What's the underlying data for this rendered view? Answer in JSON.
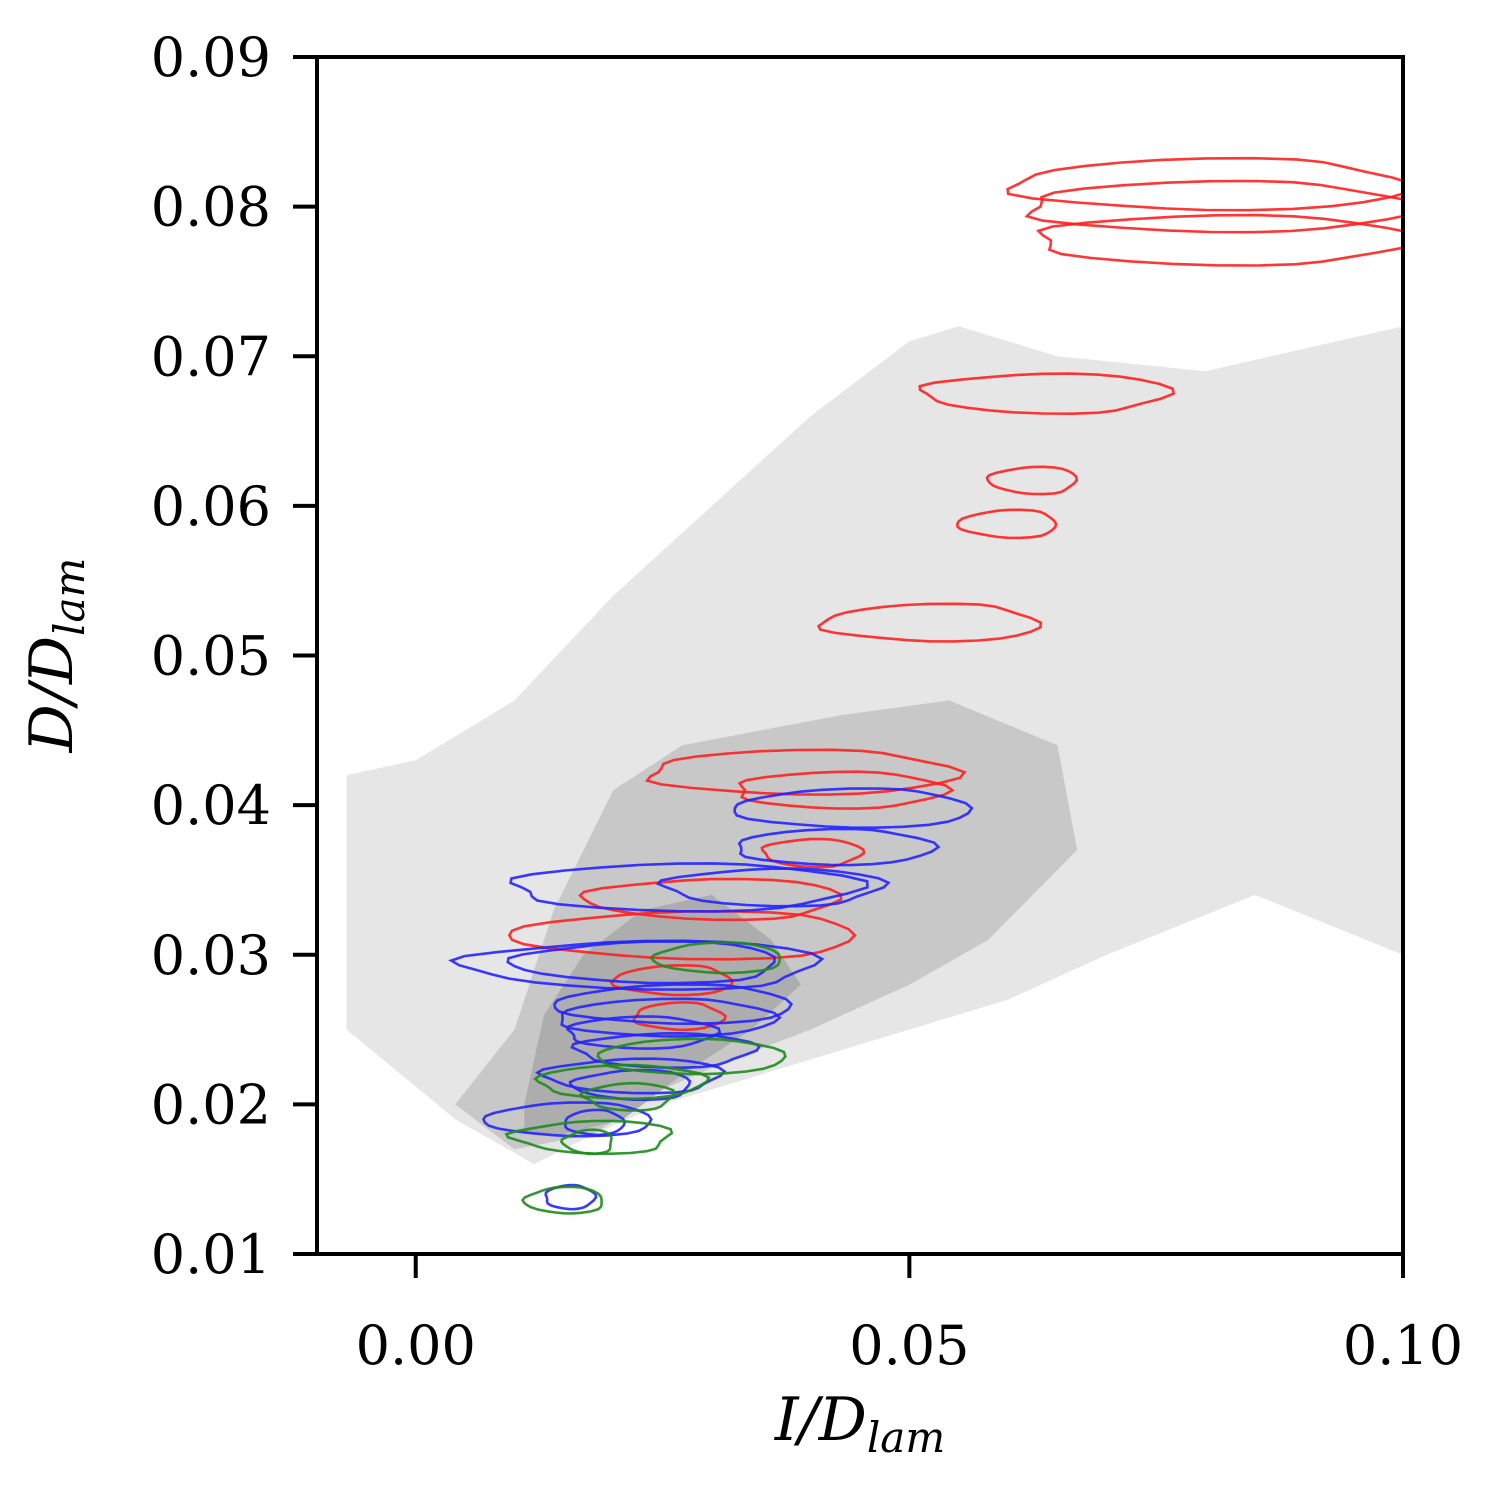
{
  "chart_data": {
    "type": "scatter",
    "subtype": "2d-histogram-with-contours",
    "title": "",
    "xlabel": {
      "main": "I/D",
      "sub": "lam"
    },
    "ylabel": {
      "main": "D/D",
      "sub": "lam"
    },
    "xlim": [
      -0.01,
      0.1
    ],
    "ylim": [
      0.01,
      0.09
    ],
    "xticks": [
      "0.00",
      "0.05",
      "0.10"
    ],
    "xtick_values": [
      0.0,
      0.05,
      0.1
    ],
    "yticks": [
      "0.01",
      "0.02",
      "0.03",
      "0.04",
      "0.05",
      "0.06",
      "0.07",
      "0.08",
      "0.09"
    ],
    "ytick_values": [
      0.01,
      0.02,
      0.03,
      0.04,
      0.05,
      0.06,
      0.07,
      0.08,
      0.09
    ],
    "grid": false,
    "legend": "none",
    "colors": {
      "red": "#ff2020",
      "blue": "#2424ff",
      "green": "#1e8c1e",
      "density_light": "#dedede",
      "density_mid": "#c4c4c4",
      "density_dark": "#adadad"
    },
    "density_bands": [
      {
        "level": "low",
        "color": "#e6e6e6",
        "polygon": [
          [
            -0.007,
            0.042
          ],
          [
            0.0,
            0.043
          ],
          [
            0.01,
            0.047
          ],
          [
            0.02,
            0.054
          ],
          [
            0.03,
            0.06
          ],
          [
            0.04,
            0.066
          ],
          [
            0.05,
            0.071
          ],
          [
            0.055,
            0.072
          ],
          [
            0.065,
            0.07
          ],
          [
            0.08,
            0.069
          ],
          [
            0.1,
            0.072
          ],
          [
            0.1,
            0.03
          ],
          [
            0.085,
            0.034
          ],
          [
            0.07,
            0.03
          ],
          [
            0.06,
            0.027
          ],
          [
            0.045,
            0.024
          ],
          [
            0.035,
            0.022
          ],
          [
            0.025,
            0.02
          ],
          [
            0.018,
            0.018
          ],
          [
            0.012,
            0.016
          ],
          [
            0.004,
            0.019
          ],
          [
            -0.007,
            0.025
          ]
        ]
      },
      {
        "level": "medium",
        "color": "#c8c8c8",
        "polygon": [
          [
            0.01,
            0.025
          ],
          [
            0.014,
            0.033
          ],
          [
            0.02,
            0.041
          ],
          [
            0.027,
            0.044
          ],
          [
            0.035,
            0.045
          ],
          [
            0.043,
            0.046
          ],
          [
            0.054,
            0.047
          ],
          [
            0.065,
            0.044
          ],
          [
            0.067,
            0.037
          ],
          [
            0.058,
            0.031
          ],
          [
            0.05,
            0.028
          ],
          [
            0.04,
            0.025
          ],
          [
            0.032,
            0.023
          ],
          [
            0.025,
            0.021
          ],
          [
            0.018,
            0.018
          ],
          [
            0.01,
            0.017
          ],
          [
            0.004,
            0.02
          ]
        ]
      },
      {
        "level": "high",
        "color": "#adadad",
        "polygon": [
          [
            0.011,
            0.02
          ],
          [
            0.013,
            0.026
          ],
          [
            0.017,
            0.03
          ],
          [
            0.023,
            0.033
          ],
          [
            0.03,
            0.034
          ],
          [
            0.036,
            0.031
          ],
          [
            0.039,
            0.028
          ],
          [
            0.034,
            0.025
          ],
          [
            0.027,
            0.022
          ],
          [
            0.021,
            0.019
          ],
          [
            0.015,
            0.018
          ],
          [
            0.011,
            0.018
          ]
        ]
      }
    ],
    "series": [
      {
        "color": "red",
        "contours": [
          [
            0.06,
            0.0805,
            0.1,
            0.0825
          ],
          [
            0.061,
            0.0795,
            0.1,
            0.0805
          ],
          [
            0.062,
            0.0775,
            0.1,
            0.078
          ],
          [
            0.051,
            0.0675,
            0.076,
            0.0675
          ],
          [
            0.058,
            0.0617,
            0.067,
            0.0617
          ],
          [
            0.055,
            0.0588,
            0.065,
            0.0588
          ],
          [
            0.041,
            0.0522,
            0.063,
            0.0522
          ],
          [
            0.023,
            0.0422,
            0.054,
            0.0422
          ],
          [
            0.032,
            0.041,
            0.053,
            0.041
          ],
          [
            0.035,
            0.0368,
            0.045,
            0.0368
          ],
          [
            0.017,
            0.0337,
            0.043,
            0.0337
          ],
          [
            0.01,
            0.0313,
            0.045,
            0.0313
          ],
          [
            0.02,
            0.0283,
            0.032,
            0.0283
          ],
          [
            0.022,
            0.0259,
            0.031,
            0.0259
          ]
        ]
      },
      {
        "color": "blue",
        "contours": [
          [
            0.032,
            0.0398,
            0.056,
            0.0398
          ],
          [
            0.032,
            0.0372,
            0.052,
            0.0372
          ],
          [
            0.009,
            0.0345,
            0.044,
            0.0345
          ],
          [
            0.025,
            0.0345,
            0.047,
            0.0345
          ],
          [
            0.005,
            0.0293,
            0.041,
            0.0293
          ],
          [
            0.01,
            0.0295,
            0.037,
            0.0295
          ],
          [
            0.014,
            0.0267,
            0.038,
            0.0267
          ],
          [
            0.014,
            0.0258,
            0.036,
            0.0258
          ],
          [
            0.015,
            0.0248,
            0.03,
            0.0248
          ],
          [
            0.016,
            0.0236,
            0.034,
            0.0236
          ],
          [
            0.013,
            0.0219,
            0.031,
            0.0219
          ],
          [
            0.016,
            0.0213,
            0.028,
            0.0213
          ],
          [
            0.007,
            0.019,
            0.024,
            0.019
          ],
          [
            0.015,
            0.0188,
            0.021,
            0.0188
          ],
          [
            0.013,
            0.0138,
            0.018,
            0.0138
          ]
        ]
      },
      {
        "color": "green",
        "contours": [
          [
            0.024,
            0.0298,
            0.037,
            0.0298
          ],
          [
            0.018,
            0.0232,
            0.037,
            0.0232
          ],
          [
            0.012,
            0.0215,
            0.029,
            0.0215
          ],
          [
            0.017,
            0.0205,
            0.026,
            0.0205
          ],
          [
            0.01,
            0.0178,
            0.026,
            0.0178
          ],
          [
            0.015,
            0.0175,
            0.02,
            0.0175
          ],
          [
            0.011,
            0.0136,
            0.019,
            0.0136
          ]
        ]
      }
    ]
  }
}
